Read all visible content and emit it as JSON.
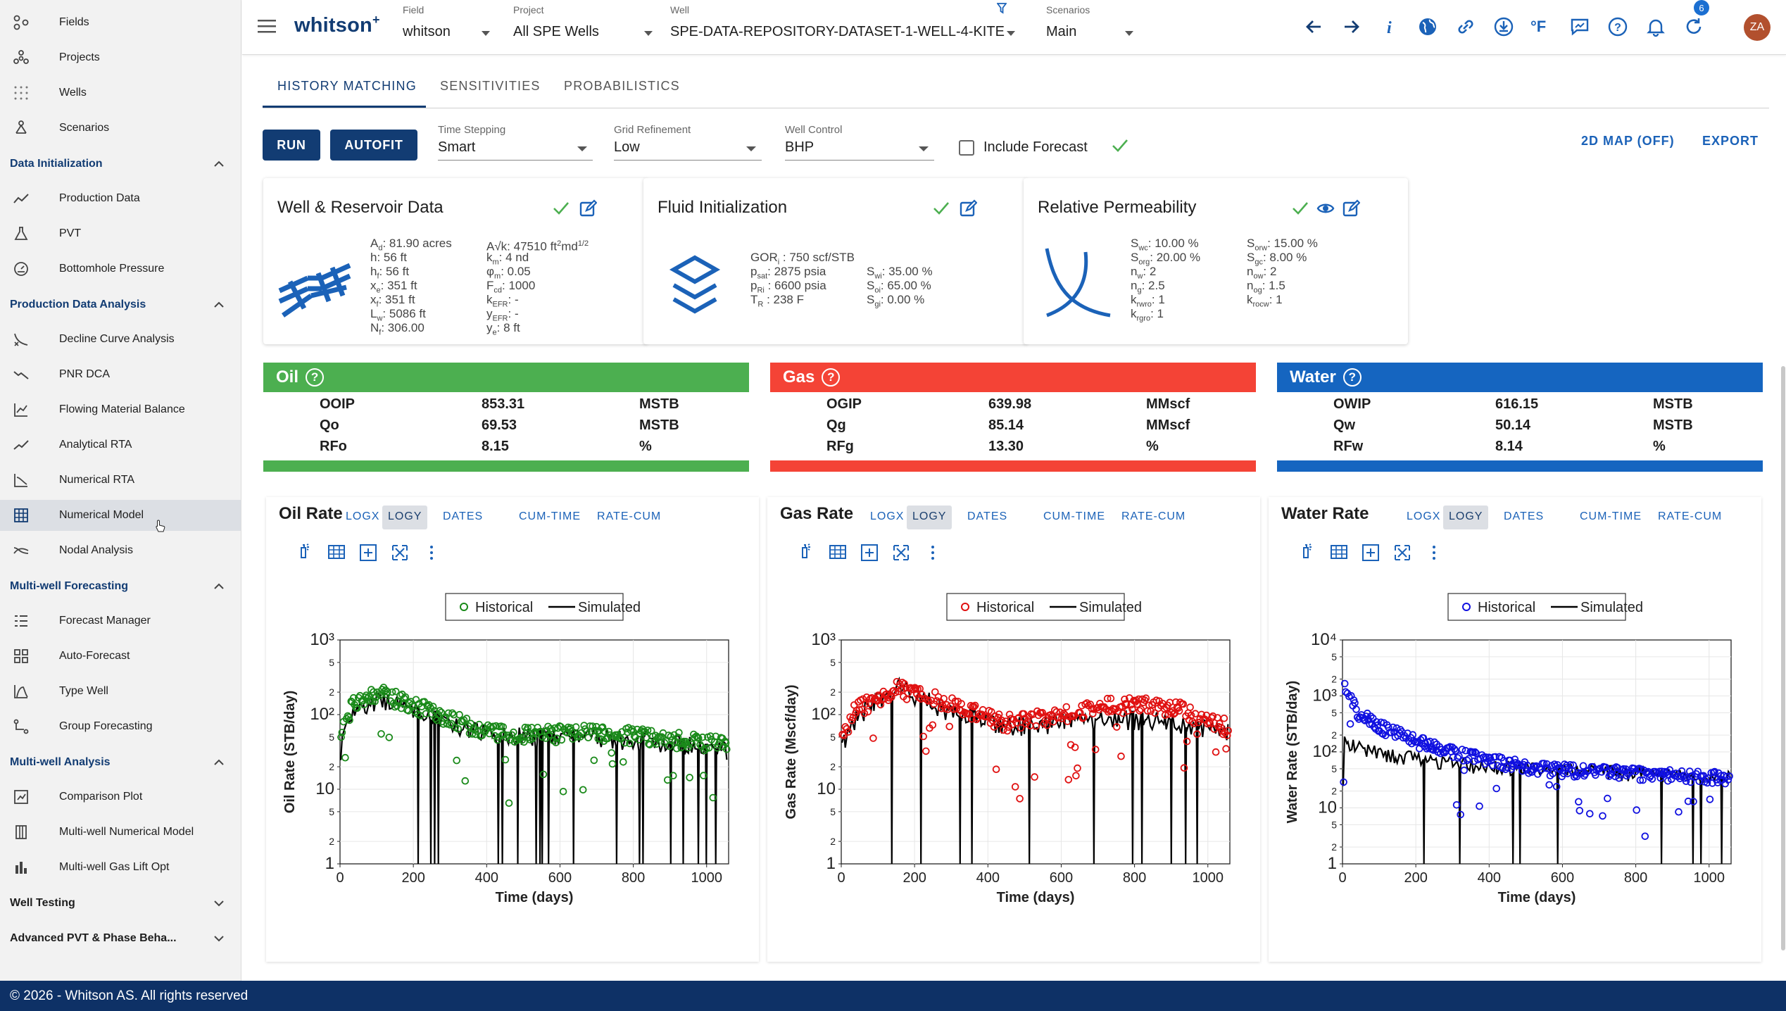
{
  "sidebar": {
    "top_items": [
      {
        "label": "Fields",
        "icon": "fields-icon"
      },
      {
        "label": "Projects",
        "icon": "projects-icon"
      },
      {
        "label": "Wells",
        "icon": "wells-icon"
      },
      {
        "label": "Scenarios",
        "icon": "scenarios-icon"
      }
    ],
    "sections": [
      {
        "title": "Data Initialization",
        "expanded": true,
        "items": [
          {
            "label": "Production Data",
            "icon": "production-data-icon"
          },
          {
            "label": "PVT",
            "icon": "pvt-flask-icon"
          },
          {
            "label": "Bottomhole Pressure",
            "icon": "gauge-icon"
          }
        ]
      },
      {
        "title": "Production Data Analysis",
        "expanded": true,
        "items": [
          {
            "label": "Decline Curve Analysis",
            "icon": "decline-curve-icon"
          },
          {
            "label": "PNR DCA",
            "icon": "pnr-dca-icon"
          },
          {
            "label": "Flowing Material Balance",
            "icon": "fmb-chart-icon"
          },
          {
            "label": "Analytical RTA",
            "icon": "analytical-rta-icon"
          },
          {
            "label": "Numerical RTA",
            "icon": "numerical-rta-icon"
          },
          {
            "label": "Numerical Model",
            "icon": "numerical-model-icon",
            "active": true
          },
          {
            "label": "Nodal Analysis",
            "icon": "nodal-analysis-icon"
          }
        ]
      },
      {
        "title": "Multi-well Forecasting",
        "expanded": true,
        "items": [
          {
            "label": "Forecast Manager",
            "icon": "forecast-manager-icon"
          },
          {
            "label": "Auto-Forecast",
            "icon": "auto-forecast-icon"
          },
          {
            "label": "Type Well",
            "icon": "type-well-icon"
          },
          {
            "label": "Group Forecasting",
            "icon": "group-forecasting-icon"
          }
        ]
      },
      {
        "title": "Multi-well Analysis",
        "expanded": true,
        "items": [
          {
            "label": "Comparison Plot",
            "icon": "comparison-plot-icon"
          },
          {
            "label": "Multi-well Numerical Model",
            "icon": "multiwell-numerical-icon"
          },
          {
            "label": "Multi-well Gas Lift Opt",
            "icon": "gas-lift-icon"
          }
        ]
      },
      {
        "title": "Well Testing",
        "expanded": false,
        "items": []
      },
      {
        "title": "Advanced PVT & Phase Beha...",
        "expanded": false,
        "items": []
      }
    ]
  },
  "footer": {
    "text": "© 2026 - Whitson AS. All rights reserved"
  },
  "header": {
    "logo": "whitson",
    "logo_sup": "+",
    "field": {
      "label": "Field",
      "value": "whitson"
    },
    "project": {
      "label": "Project",
      "value": "All SPE Wells"
    },
    "well": {
      "label": "Well",
      "value": "SPE-DATA-REPOSITORY-DATASET-1-WELL-4-KITE"
    },
    "scenario": {
      "label": "Scenarios",
      "value": "Main"
    },
    "notifications": "6",
    "avatar": "ZA",
    "units_label": "°F"
  },
  "tabs": [
    "HISTORY MATCHING",
    "SENSITIVITIES",
    "PROBABILISTICS"
  ],
  "toolbar": {
    "run": "RUN",
    "autofit": "AUTOFIT",
    "time_stepping": {
      "label": "Time Stepping",
      "value": "Smart"
    },
    "grid_refinement": {
      "label": "Grid Refinement",
      "value": "Low"
    },
    "well_control": {
      "label": "Well Control",
      "value": "BHP"
    },
    "include_forecast": "Include Forecast",
    "map": "2D MAP (OFF)",
    "export": "EXPORT"
  },
  "cards": {
    "well": {
      "title": "Well & Reservoir Data",
      "left": [
        "A<sub>d</sub>:  81.90 acres",
        "h:  56 ft",
        "h<sub>f</sub>:  56 ft",
        "x<sub>e</sub>:  351 ft",
        "x<sub>f</sub>:  351 ft",
        "L<sub>w</sub>:  5086 ft",
        "N<sub>f</sub>:  306.00"
      ],
      "right": [
        "A√k:  47510 ft<sup>2</sup>md<sup>1/2</sup>",
        "k<sub>m</sub>:  4 nd",
        "φ<sub>m</sub>:  0.05",
        "F<sub>cd</sub>:  1000",
        "k<sub>EFR</sub>:  -",
        "y<sub>EFR</sub>:  -",
        "y<sub>e</sub>:  8 ft"
      ]
    },
    "fluid": {
      "title": "Fluid Initialization",
      "left": [
        "GOR<sub>i</sub> :  750 scf/STB",
        "p<sub>sat</sub>:  2875 psia",
        "p<sub>Ri</sub> :  6600 psia",
        "T<sub>R</sub> :  238 F"
      ],
      "right": [
        "S<sub>wi</sub>:  35.00 %",
        "S<sub>oi</sub>:  65.00 %",
        "S<sub>gi</sub>:  0.00 %"
      ]
    },
    "relperm": {
      "title": "Relative Permeability",
      "left": [
        "S<sub>wc</sub>:  10.00 %",
        "S<sub>org</sub>:  20.00 %",
        "n<sub>w</sub>:  2",
        "n<sub>g</sub>:  2.5",
        "k<sub>rwro</sub>:  1",
        "k<sub>rgro</sub>:  1"
      ],
      "right": [
        "S<sub>orw</sub>:  15.00 %",
        "S<sub>gc</sub>:  8.00 %",
        "n<sub>ow</sub>:  2",
        "n<sub>og</sub>:  1.5",
        "k<sub>rocw</sub>:  1"
      ]
    }
  },
  "summaries": [
    {
      "title": "Oil",
      "color": "#4caf50",
      "rows": [
        [
          "OOIP",
          "853.31",
          "MSTB"
        ],
        [
          "Qo",
          "69.53",
          "MSTB"
        ],
        [
          "RFo",
          "8.15",
          "%"
        ]
      ]
    },
    {
      "title": "Gas",
      "color": "#f44336",
      "rows": [
        [
          "OGIP",
          "639.98",
          "MMscf"
        ],
        [
          "Qg",
          "85.14",
          "MMscf"
        ],
        [
          "RFg",
          "13.30",
          "%"
        ]
      ]
    },
    {
      "title": "Water",
      "color": "#1565c0",
      "rows": [
        [
          "OWIP",
          "616.15",
          "MSTB"
        ],
        [
          "Qw",
          "50.14",
          "MSTB"
        ],
        [
          "RFw",
          "8.14",
          "%"
        ]
      ]
    }
  ],
  "plot_buttons": [
    "LOGX",
    "LOGY",
    "DATES",
    "CUM-TIME",
    "RATE-CUM"
  ],
  "chart_data": [
    {
      "type": "scatter",
      "title": "Oil Rate",
      "ylabel": "Oil Rate (STB/day)",
      "xlabel": "Time (days)",
      "ylim": [
        1,
        1000
      ],
      "xlim": [
        0,
        1060
      ],
      "yscale": "log",
      "legend": [
        "Historical",
        "Simulated"
      ],
      "legend_position": "top-center",
      "grid": true,
      "color": "#1a8a1a",
      "xticks": [
        "0",
        "200",
        "400",
        "600",
        "800",
        "1000"
      ],
      "yticks": [
        "1",
        "2",
        "5",
        "10",
        "2",
        "5",
        "10²",
        "2",
        "5",
        "10³"
      ],
      "historical_trend": [
        [
          5,
          60
        ],
        [
          40,
          160
        ],
        [
          120,
          190
        ],
        [
          250,
          110
        ],
        [
          400,
          60
        ],
        [
          550,
          55
        ],
        [
          700,
          60
        ],
        [
          850,
          50
        ],
        [
          1050,
          40
        ]
      ],
      "simulated_trend": [
        [
          5,
          50
        ],
        [
          40,
          130
        ],
        [
          120,
          160
        ],
        [
          250,
          90
        ],
        [
          400,
          55
        ],
        [
          550,
          50
        ],
        [
          700,
          50
        ],
        [
          850,
          45
        ],
        [
          1050,
          35
        ]
      ]
    },
    {
      "type": "scatter",
      "title": "Gas Rate",
      "ylabel": "Gas Rate (Mscf/day)",
      "xlabel": "Time (days)",
      "ylim": [
        1,
        1000
      ],
      "xlim": [
        0,
        1060
      ],
      "yscale": "log",
      "legend": [
        "Historical",
        "Simulated"
      ],
      "legend_position": "top-center",
      "grid": true,
      "color": "#e01010",
      "xticks": [
        "0",
        "200",
        "400",
        "600",
        "800",
        "1000"
      ],
      "yticks": [
        "1",
        "2",
        "5",
        "10",
        "2",
        "5",
        "10²",
        "2",
        "5",
        "10³"
      ],
      "historical_trend": [
        [
          5,
          55
        ],
        [
          40,
          120
        ],
        [
          150,
          230
        ],
        [
          300,
          140
        ],
        [
          450,
          80
        ],
        [
          600,
          100
        ],
        [
          750,
          140
        ],
        [
          900,
          130
        ],
        [
          1050,
          70
        ]
      ],
      "simulated_trend": [
        [
          5,
          45
        ],
        [
          40,
          90
        ],
        [
          150,
          250
        ],
        [
          300,
          110
        ],
        [
          450,
          70
        ],
        [
          600,
          80
        ],
        [
          750,
          90
        ],
        [
          900,
          80
        ],
        [
          1050,
          60
        ]
      ]
    },
    {
      "type": "scatter",
      "title": "Water Rate",
      "ylabel": "Water Rate (STB/day)",
      "xlabel": "Time (days)",
      "ylim": [
        1,
        10000
      ],
      "xlim": [
        0,
        1060
      ],
      "yscale": "log",
      "legend": [
        "Historical",
        "Simulated"
      ],
      "legend_position": "top-center",
      "grid": true,
      "color": "#1010e0",
      "xticks": [
        "0",
        "200",
        "400",
        "600",
        "800",
        "1000"
      ],
      "yticks": [
        "1",
        "2",
        "5",
        "10",
        "2",
        "5",
        "10²",
        "2",
        "5",
        "10³",
        "2",
        "5",
        "10⁴"
      ],
      "historical_trend": [
        [
          5,
          1600
        ],
        [
          40,
          500
        ],
        [
          120,
          250
        ],
        [
          250,
          120
        ],
        [
          400,
          70
        ],
        [
          550,
          50
        ],
        [
          700,
          45
        ],
        [
          850,
          40
        ],
        [
          1050,
          35
        ]
      ],
      "simulated_trend": [
        [
          5,
          150
        ],
        [
          40,
          120
        ],
        [
          120,
          90
        ],
        [
          250,
          70
        ],
        [
          400,
          55
        ],
        [
          550,
          50
        ],
        [
          700,
          45
        ],
        [
          850,
          40
        ],
        [
          1050,
          35
        ]
      ]
    }
  ]
}
